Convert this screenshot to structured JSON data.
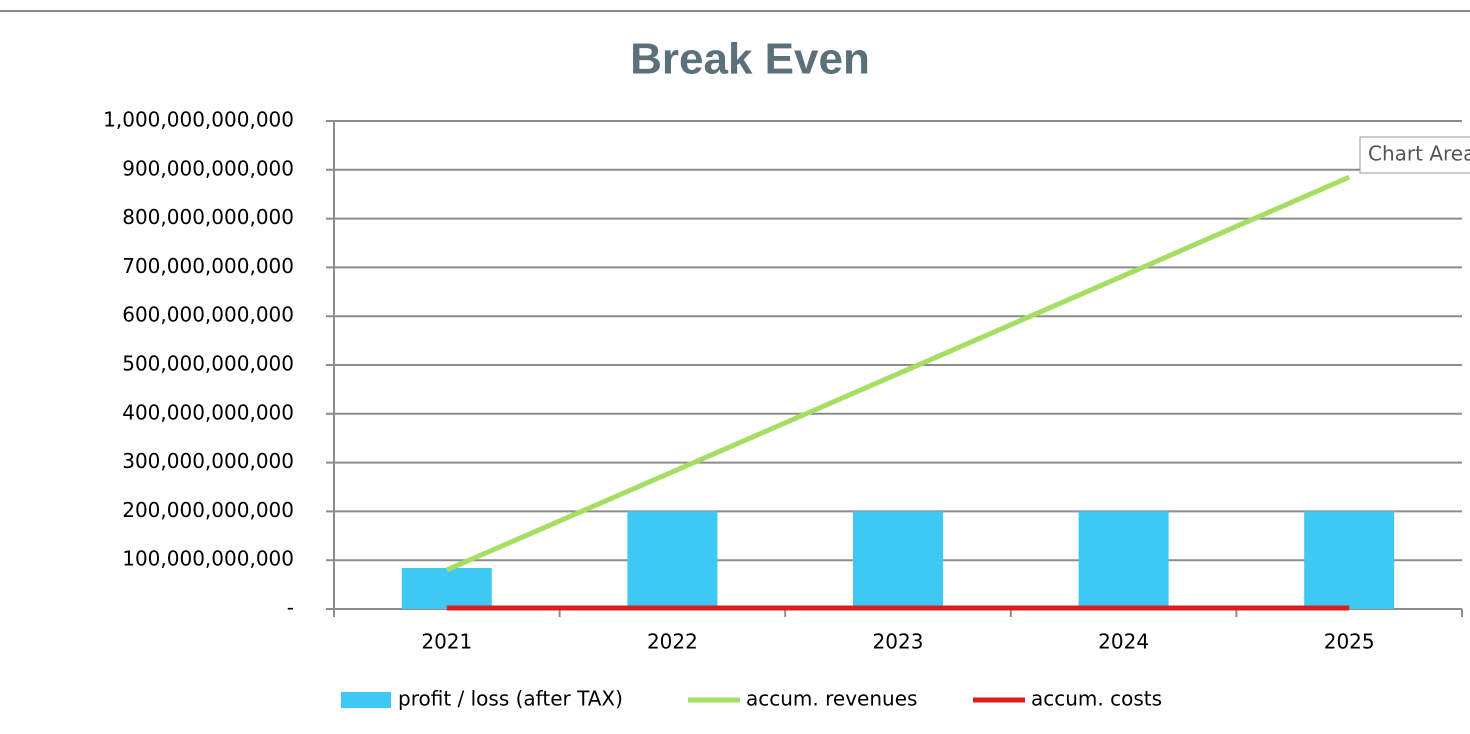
{
  "chart_data": {
    "type": "bar_line",
    "title": "Break Even",
    "tooltip": "Chart Area",
    "categories": [
      "2021",
      "2022",
      "2023",
      "2024",
      "2025"
    ],
    "series": [
      {
        "name": "profit / loss (after TAX)",
        "type": "bar",
        "color": "#3ec8f4",
        "values": [
          84000000000,
          200000000000,
          200000000000,
          200000000000,
          200000000000
        ]
      },
      {
        "name": "accum. revenues",
        "type": "line",
        "color": "#a4de62",
        "values": [
          80000000000,
          281000000000,
          482000000000,
          683000000000,
          885000000000
        ]
      },
      {
        "name": "accum. costs",
        "type": "line",
        "color": "#dd1c1c",
        "values": [
          2000000000,
          2000000000,
          2000000000,
          2000000000,
          2000000000
        ]
      }
    ],
    "ylim": [
      0,
      1000000000000
    ],
    "yticks": [
      {
        "value": 0,
        "label": "-"
      },
      {
        "value": 100000000000,
        "label": "100,000,000,000"
      },
      {
        "value": 200000000000,
        "label": "200,000,000,000"
      },
      {
        "value": 300000000000,
        "label": "300,000,000,000"
      },
      {
        "value": 400000000000,
        "label": "400,000,000,000"
      },
      {
        "value": 500000000000,
        "label": "500,000,000,000"
      },
      {
        "value": 600000000000,
        "label": "600,000,000,000"
      },
      {
        "value": 700000000000,
        "label": "700,000,000,000"
      },
      {
        "value": 800000000000,
        "label": "800,000,000,000"
      },
      {
        "value": 900000000000,
        "label": "900,000,000,000"
      },
      {
        "value": 1000000000000,
        "label": "1,000,000,000,000"
      }
    ],
    "grid": true
  }
}
